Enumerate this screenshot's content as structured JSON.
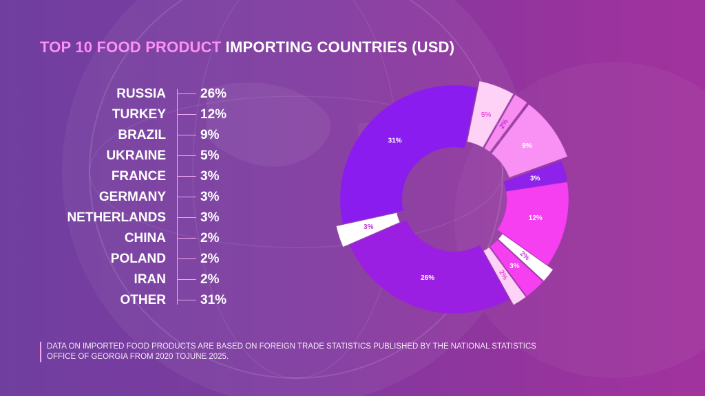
{
  "title": {
    "highlight": "TOP 10 FOOD PRODUCT",
    "rest": " IMPORTING COUNTRIES (USD)"
  },
  "footnote": {
    "line1": "DATA ON IMPORTED FOOD PRODUCTS ARE BASED ON FOREIGN TRADE STATISTICS PUBLISHED BY THE NATIONAL STATISTICS",
    "line2": "OFFICE OF GEORGIA FROM 2020 TOJUNE 2025."
  },
  "legend": [
    {
      "country": "RUSSIA",
      "value": "26%"
    },
    {
      "country": "TURKEY",
      "value": "12%"
    },
    {
      "country": "BRAZIL",
      "value": "9%"
    },
    {
      "country": "UKRAINE",
      "value": "5%"
    },
    {
      "country": "FRANCE",
      "value": "3%"
    },
    {
      "country": "GERMANY",
      "value": "3%"
    },
    {
      "country": "NETHERLANDS",
      "value": "3%"
    },
    {
      "country": "CHINA",
      "value": "2%"
    },
    {
      "country": "POLAND",
      "value": "2%"
    },
    {
      "country": "IRAN",
      "value": "2%"
    },
    {
      "country": "OTHER",
      "value": "31%"
    }
  ],
  "chart_data": {
    "type": "pie",
    "donut": true,
    "categories": [
      "RUSSIA",
      "TURKEY",
      "BRAZIL",
      "UKRAINE",
      "FRANCE",
      "GERMANY",
      "NETHERLANDS",
      "CHINA",
      "POLAND",
      "IRAN",
      "OTHER"
    ],
    "values": [
      26,
      12,
      9,
      5,
      3,
      3,
      3,
      2,
      2,
      2,
      31
    ],
    "labels": [
      "26%",
      "12%",
      "9%",
      "5%",
      "3%",
      "3%",
      "3%",
      "2%",
      "2%",
      "2%",
      "31%"
    ],
    "slice_order": [
      {
        "label": "26%",
        "value": 26,
        "color": "#9b1fe3",
        "label_color": "#ffffff",
        "exploded": false
      },
      {
        "label": "3%",
        "value": 3,
        "color": "#ffffff",
        "label_color": "#c23ad6",
        "exploded": true
      },
      {
        "label": "31%",
        "value": 31,
        "color": "#8a1cf0",
        "label_color": "#ffffff",
        "exploded": false
      },
      {
        "label": "5%",
        "value": 5,
        "color": "#fdd2f6",
        "label_color": "#ec4fd9",
        "exploded": true
      },
      {
        "label": "2%",
        "value": 2,
        "color": "#f98cf1",
        "label_color": "#b72fd1",
        "exploded": true
      },
      {
        "label": "9%",
        "value": 9,
        "color": "#f991f4",
        "label_color": "#ffffff",
        "exploded": true
      },
      {
        "label": "3%",
        "value": 3,
        "color": "#8e22ea",
        "label_color": "#ffffff",
        "exploded": false
      },
      {
        "label": "12%",
        "value": 12,
        "color": "#f53ff0",
        "label_color": "#ffffff",
        "exploded": false
      },
      {
        "label": "2%",
        "value": 2,
        "color": "#ffffff",
        "label_color": "#c23ad6",
        "exploded": true
      },
      {
        "label": "3%",
        "value": 3,
        "color": "#f53ff0",
        "label_color": "#ffffff",
        "exploded": true
      },
      {
        "label": "2%",
        "value": 2,
        "color": "#fdd2f6",
        "label_color": "#ec4fd9",
        "exploded": true
      }
    ]
  }
}
